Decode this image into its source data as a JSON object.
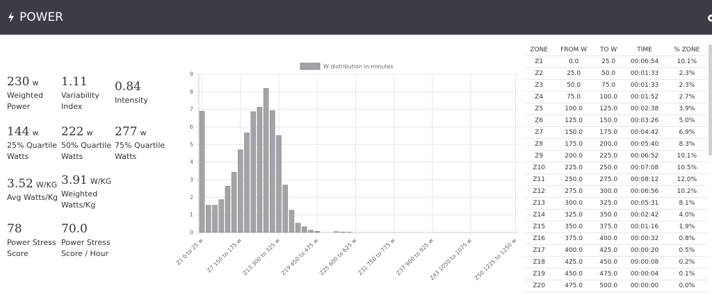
{
  "header": {
    "title": "POWER"
  },
  "metrics": [
    {
      "value": "230",
      "unit": "w",
      "label": "Weighted Power"
    },
    {
      "value": "1.11",
      "label": "Variability Index"
    },
    {
      "value": "0.84",
      "label": "Intensity"
    },
    {
      "value": "144",
      "unit": "w",
      "label": "25% Quartile Watts"
    },
    {
      "value": "222",
      "unit": "w",
      "label": "50% Quartile Watts"
    },
    {
      "value": "277",
      "unit": "w",
      "label": "75% Quartile Watts"
    },
    {
      "value": "3.52",
      "unit": "W/KG",
      "label": "Avg Watts/Kg"
    },
    {
      "value": "3.91",
      "unit": "W/KG",
      "label": "Weighted Watts/Kg"
    },
    {
      "value": "78",
      "label": "Power Stress Score"
    },
    {
      "value": "70.0",
      "label": "Power Stress Score / Hour"
    }
  ],
  "chart_data": {
    "type": "bar",
    "categories": [
      "Z1 0 to 25 w",
      null,
      null,
      null,
      null,
      null,
      "Z7 150 to 175 w",
      null,
      null,
      null,
      null,
      null,
      "Z13 300 to 325 w",
      null,
      null,
      null,
      null,
      null,
      "Z19 450 to 475 w",
      null,
      null,
      null,
      null,
      null,
      "Z25 600 to 625 w",
      null,
      null,
      null,
      null,
      null,
      "Z31 750 to 775 w",
      null,
      null,
      null,
      null,
      null,
      "Z37 900 to 925 w",
      null,
      null,
      null,
      null,
      null,
      "Z43 1050 to 1075 w",
      null,
      null,
      null,
      null,
      null,
      null,
      "Z50 1225 to 1250 w"
    ],
    "series": [
      {
        "name": "W distribution in minutes",
        "color": "#a4a3a8",
        "values": [
          6.9,
          1.55,
          1.55,
          1.87,
          2.63,
          3.43,
          4.7,
          5.67,
          6.87,
          7.13,
          8.2,
          6.93,
          5.52,
          2.7,
          1.27,
          0.53,
          0.33,
          0.13,
          0.07,
          0,
          0,
          0.05,
          0.03,
          0.02,
          0,
          0,
          0,
          0,
          0,
          0,
          0,
          0,
          0,
          0,
          0,
          0,
          0,
          0,
          0,
          0,
          0,
          0,
          0,
          0,
          0,
          0,
          0,
          0,
          0,
          0
        ]
      }
    ],
    "ylim": [
      0,
      9
    ],
    "yticks": [
      0,
      1,
      2,
      3,
      4,
      5,
      6,
      7,
      8,
      9
    ],
    "grid": true
  },
  "table": {
    "header": [
      "ZONE",
      "FROM W",
      "TO W",
      "TIME",
      "% ZONE"
    ],
    "rows": [
      [
        "Z1",
        "0.0",
        "25.0",
        "00:06:54",
        "10.1%"
      ],
      [
        "Z2",
        "25.0",
        "50.0",
        "00:01:33",
        "2.3%"
      ],
      [
        "Z3",
        "50.0",
        "75.0",
        "00:01:33",
        "2.3%"
      ],
      [
        "Z4",
        "75.0",
        "100.0",
        "00:01:52",
        "2.7%"
      ],
      [
        "Z5",
        "100.0",
        "125.0",
        "00:02:38",
        "3.9%"
      ],
      [
        "Z6",
        "125.0",
        "150.0",
        "00:03:26",
        "5.0%"
      ],
      [
        "Z7",
        "150.0",
        "175.0",
        "00:04:42",
        "6.9%"
      ],
      [
        "Z8",
        "175.0",
        "200.0",
        "00:05:40",
        "8.3%"
      ],
      [
        "Z9",
        "200.0",
        "225.0",
        "00:06:52",
        "10.1%"
      ],
      [
        "Z10",
        "225.0",
        "250.0",
        "00:07:08",
        "10.5%"
      ],
      [
        "Z11",
        "250.0",
        "275.0",
        "00:08:12",
        "12.0%"
      ],
      [
        "Z12",
        "275.0",
        "300.0",
        "00:06:56",
        "10.2%"
      ],
      [
        "Z13",
        "300.0",
        "325.0",
        "00:05:31",
        "8.1%"
      ],
      [
        "Z14",
        "325.0",
        "350.0",
        "00:02:42",
        "4.0%"
      ],
      [
        "Z15",
        "350.0",
        "375.0",
        "00:01:16",
        "1.9%"
      ],
      [
        "Z16",
        "375.0",
        "400.0",
        "00:00:32",
        "0.8%"
      ],
      [
        "Z17",
        "400.0",
        "425.0",
        "00:00:20",
        "0.5%"
      ],
      [
        "Z18",
        "425.0",
        "450.0",
        "00:00:08",
        "0.2%"
      ],
      [
        "Z19",
        "450.0",
        "475.0",
        "00:00:04",
        "0.1%"
      ],
      [
        "Z20",
        "475.0",
        "500.0",
        "00:00:00",
        "0.0%"
      ]
    ]
  }
}
